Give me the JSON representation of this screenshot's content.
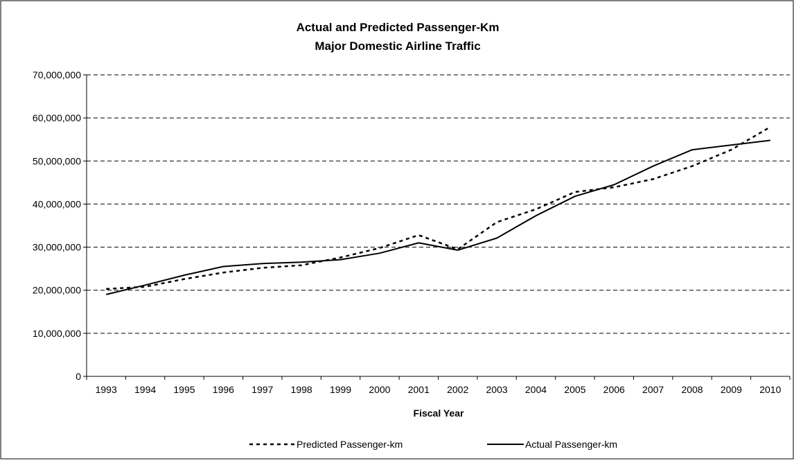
{
  "chart_data": {
    "type": "line",
    "title": "Actual and Predicted Passenger-Km",
    "subtitle": "Major Domestic Airline Traffic",
    "xlabel": "Fiscal Year",
    "ylabel": "",
    "categories": [
      "1993",
      "1994",
      "1995",
      "1996",
      "1997",
      "1998",
      "1999",
      "2000",
      "2001",
      "2002",
      "2003",
      "2004",
      "2005",
      "2006",
      "2007",
      "2008",
      "2009",
      "2010"
    ],
    "ylim": [
      0,
      70000000
    ],
    "yticks": [
      {
        "value": 0,
        "label": "0"
      },
      {
        "value": 10000000,
        "label": "10,000,000"
      },
      {
        "value": 20000000,
        "label": "20,000,000"
      },
      {
        "value": 30000000,
        "label": "30,000,000"
      },
      {
        "value": 40000000,
        "label": "40,000,000"
      },
      {
        "value": 50000000,
        "label": "50,000,000"
      },
      {
        "value": 60000000,
        "label": "60,000,000"
      },
      {
        "value": 70000000,
        "label": "70,000,000"
      }
    ],
    "grid": {
      "horizontal": true,
      "style": "dashed"
    },
    "legend_position": "bottom",
    "series": [
      {
        "name": "Predicted Passenger-km",
        "line_style": "dotted",
        "color": "#000000",
        "values": [
          20300000,
          20800000,
          22600000,
          24100000,
          25200000,
          25800000,
          27600000,
          29800000,
          32800000,
          29500000,
          35800000,
          38800000,
          42800000,
          43900000,
          45800000,
          48800000,
          52600000,
          57900000
        ]
      },
      {
        "name": "Actual Passenger-km",
        "line_style": "solid",
        "color": "#000000",
        "values": [
          19000000,
          21200000,
          23500000,
          25500000,
          26200000,
          26500000,
          27100000,
          28600000,
          31000000,
          29300000,
          32100000,
          37300000,
          41800000,
          44500000,
          48800000,
          52600000,
          53700000,
          54800000
        ]
      }
    ]
  }
}
